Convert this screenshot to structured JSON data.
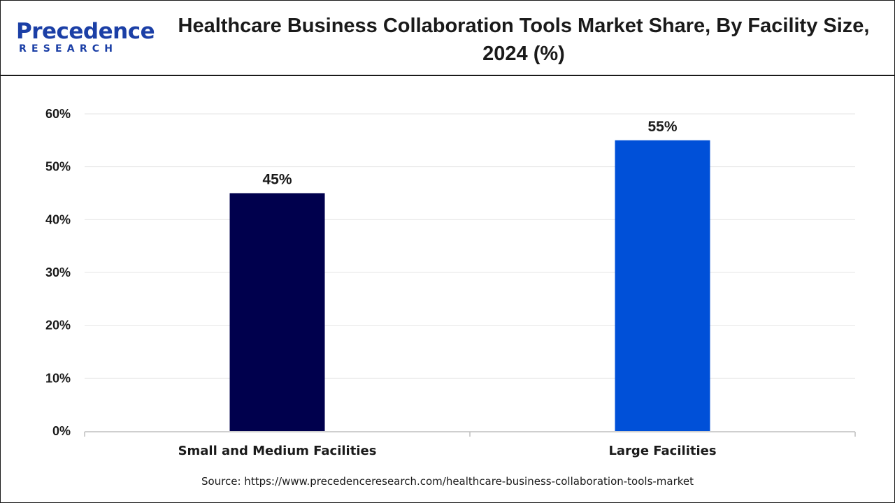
{
  "brand": {
    "name": "Precedence",
    "sub": "RESEARCH",
    "color": "#1b3fa6"
  },
  "header": {
    "title": "Healthcare Business Collaboration Tools Market Share, By Facility Size, 2024 (%)"
  },
  "footer": {
    "source": "Source: https://www.precedenceresearch.com/healthcare-business-collaboration-tools-market"
  },
  "chart_data": {
    "type": "bar",
    "title": "Healthcare Business Collaboration Tools Market Share, By Facility Size, 2024 (%)",
    "categories": [
      "Small and Medium Facilities",
      "Large Facilities"
    ],
    "values": [
      45,
      55
    ],
    "value_labels": [
      "45%",
      "55%"
    ],
    "bar_colors": [
      "#00004d",
      "#0050d8"
    ],
    "xlabel": "",
    "ylabel": "",
    "ylim": [
      0,
      60
    ],
    "yticks": [
      0,
      10,
      20,
      30,
      40,
      50,
      60
    ],
    "ytick_labels": [
      "0%",
      "10%",
      "20%",
      "30%",
      "40%",
      "50%",
      "60%"
    ],
    "grid": true,
    "legend": false
  }
}
